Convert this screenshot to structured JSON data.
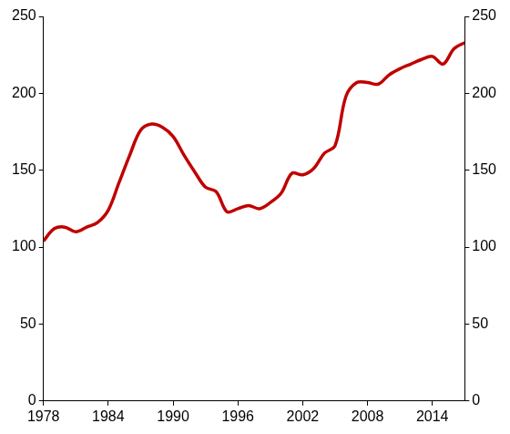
{
  "chart_data": {
    "type": "line",
    "x": [
      1978,
      1979,
      1980,
      1981,
      1982,
      1983,
      1984,
      1985,
      1986,
      1987,
      1988,
      1989,
      1990,
      1991,
      1992,
      1993,
      1994,
      1995,
      1996,
      1997,
      1998,
      1999,
      2000,
      2001,
      2002,
      2003,
      2004,
      2005,
      2006,
      2007,
      2008,
      2009,
      2010,
      2011,
      2012,
      2013,
      2014,
      2015,
      2016,
      2017
    ],
    "values": [
      104,
      112,
      113,
      110,
      113,
      116,
      124,
      142,
      160,
      176,
      180,
      178,
      172,
      160,
      149,
      139,
      136,
      123,
      125,
      127,
      125,
      129,
      135,
      148,
      147,
      151,
      161,
      166,
      198,
      207,
      207,
      206,
      212,
      216,
      219,
      222,
      224,
      219,
      229,
      233
    ],
    "color": "#c00000",
    "xlim": [
      1978,
      2017
    ],
    "xticks": [
      1978,
      1984,
      1990,
      1996,
      2002,
      2008,
      2014
    ],
    "ylim": [
      0,
      250
    ],
    "yticks": [
      0,
      50,
      100,
      150,
      200,
      250
    ],
    "y2lim": [
      0,
      250
    ],
    "y2ticks": [
      0,
      50,
      100,
      150,
      200,
      250
    ],
    "grid": false
  }
}
